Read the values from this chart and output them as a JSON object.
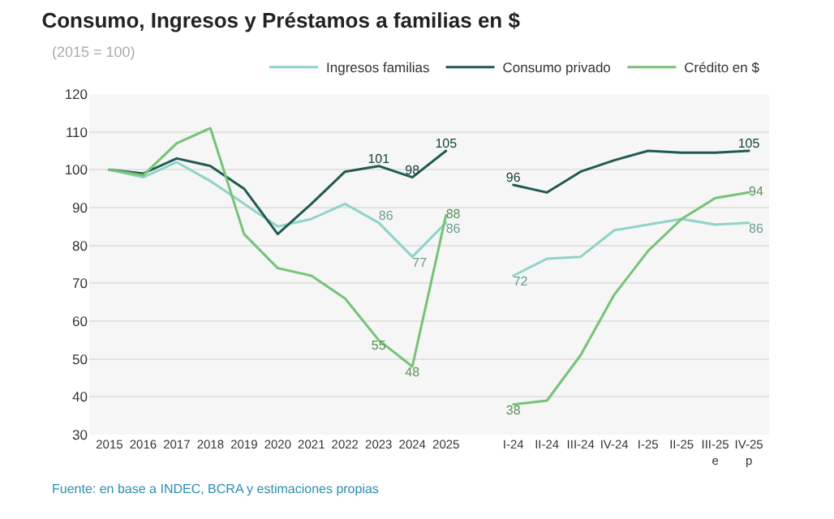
{
  "chart_data": {
    "type": "line",
    "title": "Consumo, Ingresos y Préstamos a familias en $",
    "subtitle": "(2015 = 100)",
    "categories": [
      "2015",
      "2016",
      "2017",
      "2018",
      "2019",
      "2020",
      "2021",
      "2022",
      "2023",
      "2024",
      "2025",
      null,
      "I-24",
      "II-24",
      "III-24",
      "IV-24",
      "I-25",
      "II-25",
      "III-25\ne",
      "IV-25\np"
    ],
    "series": [
      {
        "name": "Ingresos familias",
        "color": "#8fd3c8",
        "values": [
          100,
          98,
          102,
          97,
          91,
          85,
          87,
          91,
          86,
          77,
          86,
          null,
          72,
          76.5,
          77,
          84,
          85.5,
          87,
          85.5,
          86
        ],
        "value_labels": [
          null,
          null,
          null,
          null,
          null,
          null,
          null,
          null,
          "86",
          "77",
          "86",
          null,
          "72",
          null,
          null,
          null,
          null,
          null,
          null,
          "86"
        ]
      },
      {
        "name": "Consumo privado",
        "color": "#1f5a52",
        "values": [
          100,
          99,
          103,
          101,
          95,
          83,
          91,
          99.5,
          101,
          98,
          105,
          null,
          96,
          94,
          99.5,
          102.5,
          105,
          104.5,
          104.5,
          105
        ],
        "value_labels": [
          null,
          null,
          null,
          null,
          null,
          null,
          null,
          null,
          "101",
          "98",
          "105",
          null,
          "96",
          null,
          null,
          null,
          null,
          null,
          null,
          "105"
        ]
      },
      {
        "name": "Crédito en $",
        "color": "#77c277",
        "values": [
          100,
          98.5,
          107,
          111,
          83,
          74,
          72,
          66,
          55,
          48,
          88,
          null,
          38,
          39,
          51,
          67,
          78.5,
          87,
          92.5,
          94
        ],
        "value_labels": [
          null,
          null,
          null,
          null,
          null,
          null,
          null,
          null,
          "55",
          "48",
          "88",
          null,
          "38",
          null,
          null,
          null,
          null,
          null,
          null,
          "94"
        ]
      }
    ],
    "ylim": [
      30,
      120
    ],
    "yticks": [
      30,
      40,
      50,
      60,
      70,
      80,
      90,
      100,
      110,
      120
    ],
    "grid": "y",
    "legend": "top right",
    "marker": "none",
    "line_style": "solid",
    "annotations": [
      "Fuente: en base a INDEC, BCRA y estimaciones propias"
    ]
  }
}
